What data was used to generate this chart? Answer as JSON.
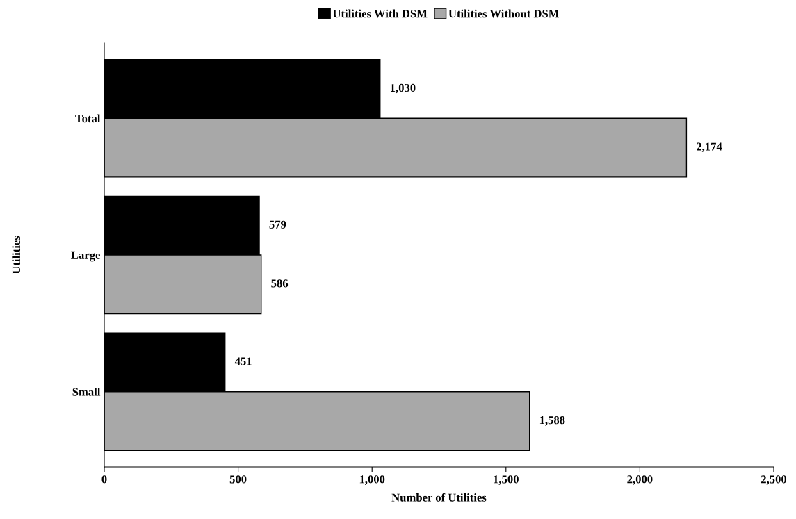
{
  "chart_data": {
    "type": "bar",
    "orientation": "horizontal",
    "categories": [
      "Total",
      "Large",
      "Small"
    ],
    "series": [
      {
        "name": "Utilities With DSM",
        "color": "#000000",
        "values": [
          1030,
          579,
          451
        ],
        "value_labels": [
          "1,030",
          "579",
          "451"
        ]
      },
      {
        "name": "Utilities Without DSM",
        "color": "#a8a8a8",
        "values": [
          2174,
          586,
          1588
        ],
        "value_labels": [
          "2,174",
          "586",
          "1,588"
        ]
      }
    ],
    "xlabel": "Number of Utilities",
    "ylabel": "Utilities",
    "xlim": [
      0,
      2500
    ],
    "xticks": [
      0,
      500,
      {
        "value": 1000,
        "label": "1,000"
      },
      {
        "value": 1500,
        "label": "1,500"
      },
      {
        "value": 2000,
        "label": "2,000"
      },
      {
        "value": 2500,
        "label": "2,500"
      }
    ],
    "legend": "top",
    "grid": false
  }
}
